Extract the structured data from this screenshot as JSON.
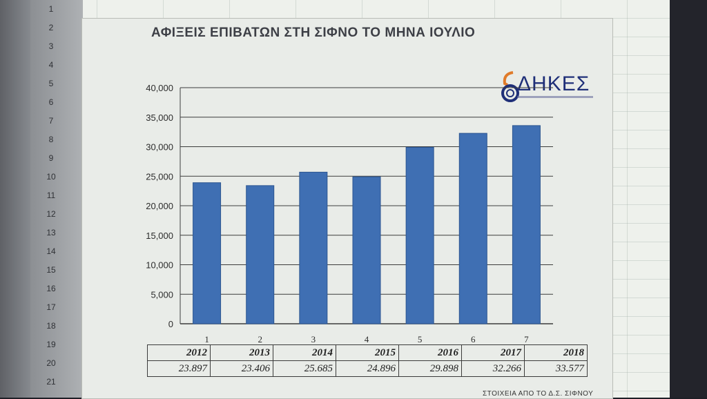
{
  "spreadsheet": {
    "row_numbers": [
      "1",
      "2",
      "3",
      "4",
      "5",
      "6",
      "7",
      "8",
      "9",
      "10",
      "11",
      "12",
      "13",
      "14",
      "15",
      "16",
      "17",
      "18",
      "19",
      "20",
      "21"
    ]
  },
  "chart": {
    "title": "ΑΦΙΞΕΙΣ ΕΠΙΒΑΤΩΝ ΣΤΗ ΣΙΦΝΟ ΤΟ ΜΗΝΑ ΙΟΥΛΙΟ",
    "logo_text": "ΔΗΚΕΣ",
    "source_note": "ΣΤΟΙΧΕΙΑ ΑΠΟ ΤΟ Δ.Σ. ΣΙΦΝΟΥ",
    "bar_color": "#3f6fb3",
    "yticks": [
      "0",
      "5,000",
      "10,000",
      "15,000",
      "20,000",
      "25,000",
      "30,000",
      "35,000",
      "40,000"
    ]
  },
  "chart_data": {
    "type": "bar",
    "categories": [
      "1",
      "2",
      "3",
      "4",
      "5",
      "6",
      "7"
    ],
    "values": [
      23897,
      23406,
      25685,
      24896,
      29898,
      32266,
      33577
    ],
    "title": "ΑΦΙΞΕΙΣ ΕΠΙΒΑΤΩΝ ΣΤΗ ΣΙΦΝΟ ΤΟ ΜΗΝΑ ΙΟΥΛΙΟ",
    "xlabel": "",
    "ylabel": "",
    "ylim": [
      0,
      40000
    ],
    "grid": true
  },
  "table": {
    "years": [
      "2012",
      "2013",
      "2014",
      "2015",
      "2016",
      "2017",
      "2018"
    ],
    "values": [
      "23.897",
      "23.406",
      "25.685",
      "24.896",
      "29.898",
      "32.266",
      "33.577"
    ]
  }
}
